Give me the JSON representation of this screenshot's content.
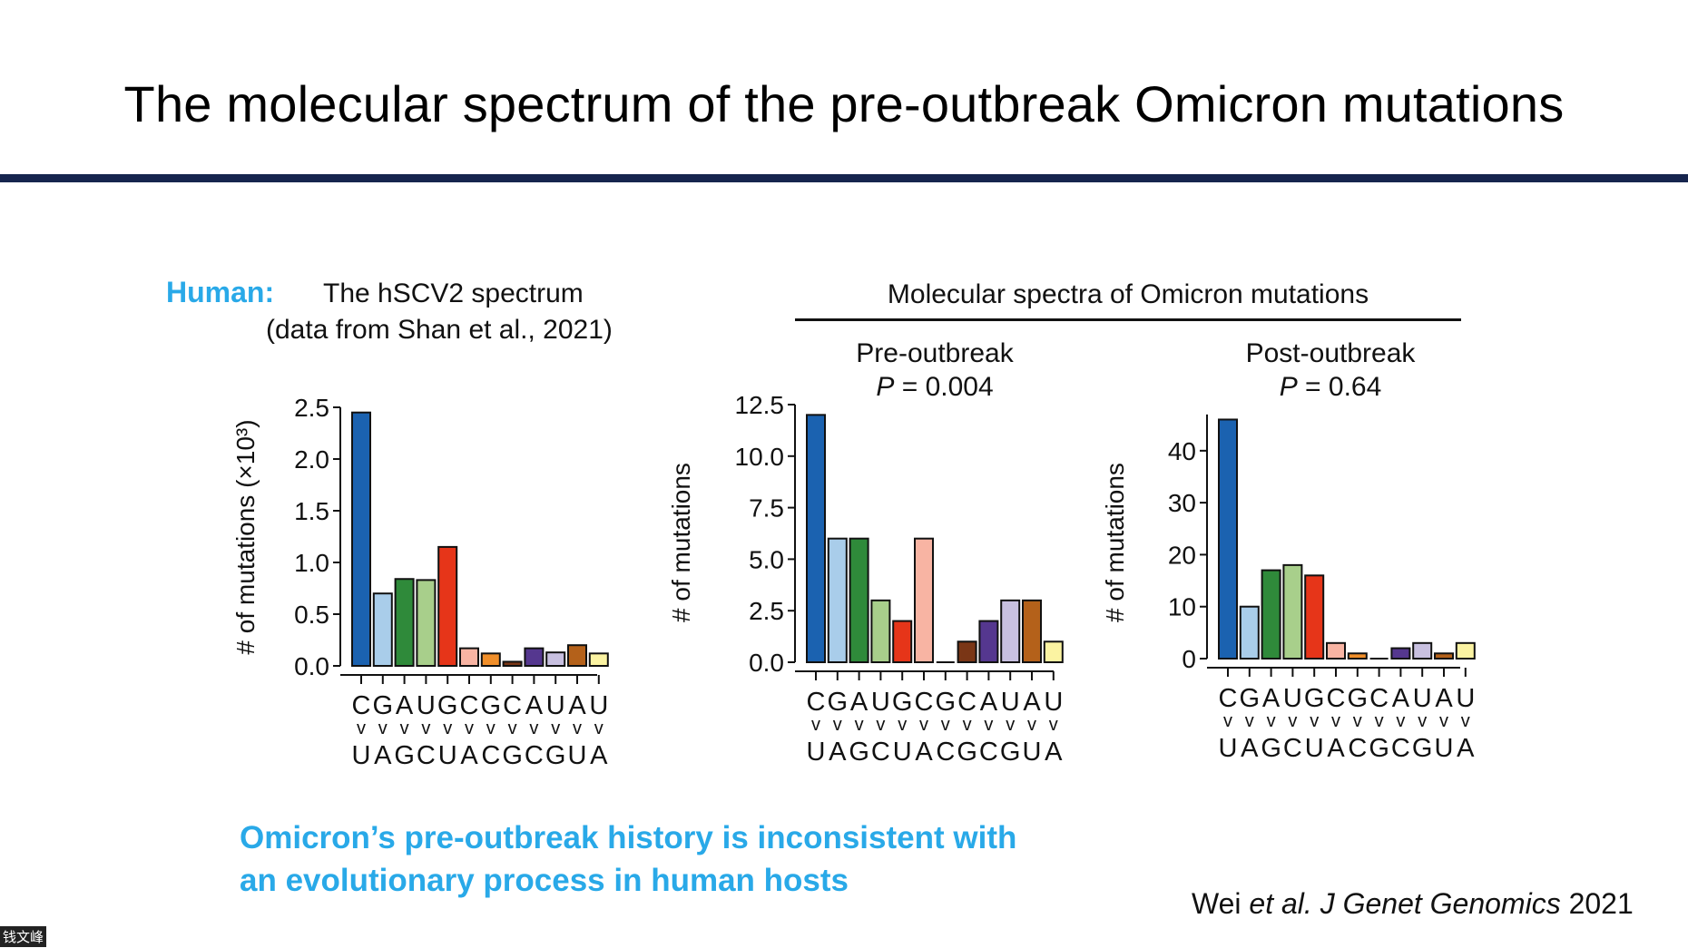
{
  "slide": {
    "title": "The molecular spectrum of the pre-outbreak Omicron mutations",
    "human_label": "Human:",
    "hscv2_title": "The hSCV2 spectrum",
    "hscv2_source": "(data from Shan et al., 2021)",
    "omicron_header": "Molecular spectra of Omicron mutations",
    "conclusion_line1": "Omicron’s pre-outbreak history is inconsistent with",
    "conclusion_line2": "an evolutionary process in human hosts",
    "citation": {
      "authors": "Wei",
      "etal": "et al.",
      "journal": "J Genet Genomics",
      "year": "2021"
    },
    "watermark": "钱文峰"
  },
  "colors": [
    "#1b62b0",
    "#a9cdea",
    "#2f8a3a",
    "#a8cf8b",
    "#e63519",
    "#f8b4a3",
    "#f18f2a",
    "#7a3616",
    "#55378f",
    "#c8c0e0",
    "#b4611a",
    "#fbf3a2"
  ],
  "x_top": "CGAUGCGCAUAU",
  "x_mid": "vvvvvvvvvvvv",
  "x_bottom": "UAGCUACGCGUA",
  "chart_data": [
    {
      "type": "bar",
      "title": "The hSCV2 spectrum",
      "subtitle": "(data from Shan et al., 2021)",
      "ylabel": "# of mutations (×10³)",
      "xlabel": "",
      "categories": [
        "C>U",
        "G>A",
        "A>G",
        "U>C",
        "G>U",
        "C>A",
        "G>C",
        "C>G",
        "A>C",
        "U>G",
        "A>U",
        "U>A"
      ],
      "values": [
        2.45,
        0.7,
        0.84,
        0.83,
        1.15,
        0.17,
        0.12,
        0.04,
        0.17,
        0.13,
        0.2,
        0.12
      ],
      "ylim": [
        0,
        2.5
      ],
      "yticks": [
        "0.0",
        "0.5",
        "1.0",
        "1.5",
        "2.0",
        "2.5"
      ],
      "ytick_values": [
        0,
        0.5,
        1.0,
        1.5,
        2.0,
        2.5
      ]
    },
    {
      "type": "bar",
      "title": "Pre-outbreak",
      "p_label": "P",
      "p_value": " = 0.004",
      "ylabel": "# of mutations",
      "xlabel": "",
      "categories": [
        "C>U",
        "G>A",
        "A>G",
        "U>C",
        "G>U",
        "C>A",
        "G>C",
        "C>G",
        "A>C",
        "U>G",
        "A>U",
        "U>A"
      ],
      "values": [
        12,
        6,
        6,
        3,
        2,
        6,
        0,
        1,
        2,
        3,
        3,
        1
      ],
      "ylim": [
        0,
        12.5
      ],
      "yticks": [
        "0.0",
        "2.5",
        "5.0",
        "7.5",
        "10.0",
        "12.5"
      ],
      "ytick_values": [
        0,
        2.5,
        5.0,
        7.5,
        10.0,
        12.5
      ]
    },
    {
      "type": "bar",
      "title": "Post-outbreak",
      "p_label": "P",
      "p_value": " = 0.64",
      "ylabel": "# of mutations",
      "xlabel": "",
      "categories": [
        "C>U",
        "G>A",
        "A>G",
        "U>C",
        "G>U",
        "C>A",
        "G>C",
        "C>G",
        "A>C",
        "U>G",
        "A>U",
        "U>A"
      ],
      "values": [
        46,
        10,
        17,
        18,
        16,
        3,
        1,
        0,
        2,
        3,
        1,
        3
      ],
      "ylim": [
        0,
        48
      ],
      "yticks": [
        "0",
        "10",
        "20",
        "30",
        "40"
      ],
      "ytick_values": [
        0,
        10,
        20,
        30,
        40
      ]
    }
  ]
}
